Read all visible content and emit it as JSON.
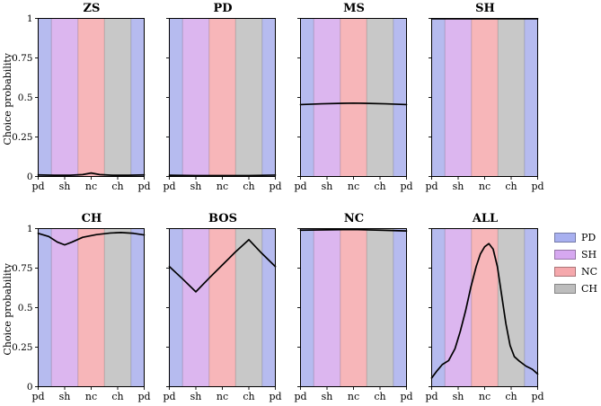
{
  "chart_data": {
    "type": "line",
    "ylabel": "Choice probability",
    "x_tick_labels": [
      "pd",
      "sh",
      "nc",
      "ch",
      "pd"
    ],
    "y_ticks": [
      0,
      0.25,
      0.5,
      0.75,
      1
    ],
    "y_tick_labels": [
      "0",
      "0.25",
      "0.5",
      "0.75",
      "1"
    ],
    "ylim": [
      0,
      1
    ],
    "grid": false,
    "line_color": "#000000",
    "band_order": [
      "PD",
      "SH",
      "NC",
      "CH",
      "PD"
    ],
    "band_edges": [
      0,
      0.125,
      0.375,
      0.625,
      0.875,
      1
    ],
    "band_colors": {
      "PD": "#b6bbef",
      "SH": "#dcb6ef",
      "NC": "#f7b6b9",
      "CH": "#c8c8c8"
    },
    "legend": {
      "position": "right",
      "entries": [
        {
          "label": "PD",
          "color": "#a8b0f0"
        },
        {
          "label": "SH",
          "color": "#d6a8f0"
        },
        {
          "label": "NC",
          "color": "#f5a8ac"
        },
        {
          "label": "CH",
          "color": "#bdbdbd"
        }
      ]
    },
    "panels": [
      {
        "title": "ZS",
        "row": 0,
        "points": [
          [
            0,
            0.01
          ],
          [
            0.15,
            0.008
          ],
          [
            0.3,
            0.008
          ],
          [
            0.42,
            0.012
          ],
          [
            0.5,
            0.022
          ],
          [
            0.58,
            0.012
          ],
          [
            0.7,
            0.008
          ],
          [
            0.85,
            0.008
          ],
          [
            1,
            0.01
          ]
        ]
      },
      {
        "title": "PD",
        "row": 0,
        "points": [
          [
            0,
            0.008
          ],
          [
            0.25,
            0.006
          ],
          [
            0.5,
            0.006
          ],
          [
            0.75,
            0.006
          ],
          [
            1,
            0.009
          ]
        ]
      },
      {
        "title": "MS",
        "row": 0,
        "points": [
          [
            0,
            0.455
          ],
          [
            0.2,
            0.46
          ],
          [
            0.4,
            0.463
          ],
          [
            0.5,
            0.464
          ],
          [
            0.6,
            0.463
          ],
          [
            0.8,
            0.46
          ],
          [
            1,
            0.455
          ]
        ]
      },
      {
        "title": "SH",
        "row": 0,
        "points": [
          [
            0,
            0.998
          ],
          [
            1,
            0.998
          ]
        ]
      },
      {
        "title": "CH",
        "row": 1,
        "points": [
          [
            0,
            0.97
          ],
          [
            0.1,
            0.95
          ],
          [
            0.18,
            0.915
          ],
          [
            0.25,
            0.897
          ],
          [
            0.32,
            0.915
          ],
          [
            0.42,
            0.945
          ],
          [
            0.55,
            0.962
          ],
          [
            0.68,
            0.972
          ],
          [
            0.78,
            0.975
          ],
          [
            0.9,
            0.97
          ],
          [
            1,
            0.96
          ]
        ]
      },
      {
        "title": "BOS",
        "row": 1,
        "points": [
          [
            0,
            0.76
          ],
          [
            0.12,
            0.685
          ],
          [
            0.25,
            0.6
          ],
          [
            0.38,
            0.69
          ],
          [
            0.5,
            0.77
          ],
          [
            0.62,
            0.85
          ],
          [
            0.75,
            0.93
          ],
          [
            0.87,
            0.845
          ],
          [
            1,
            0.76
          ]
        ]
      },
      {
        "title": "NC",
        "row": 1,
        "points": [
          [
            0,
            0.99
          ],
          [
            0.25,
            0.992
          ],
          [
            0.5,
            0.994
          ],
          [
            0.75,
            0.99
          ],
          [
            1,
            0.985
          ]
        ]
      },
      {
        "title": "ALL",
        "row": 1,
        "points": [
          [
            0,
            0.055
          ],
          [
            0.05,
            0.1
          ],
          [
            0.1,
            0.14
          ],
          [
            0.16,
            0.165
          ],
          [
            0.22,
            0.24
          ],
          [
            0.27,
            0.35
          ],
          [
            0.32,
            0.48
          ],
          [
            0.37,
            0.63
          ],
          [
            0.42,
            0.76
          ],
          [
            0.46,
            0.84
          ],
          [
            0.5,
            0.885
          ],
          [
            0.54,
            0.905
          ],
          [
            0.58,
            0.87
          ],
          [
            0.62,
            0.76
          ],
          [
            0.66,
            0.58
          ],
          [
            0.7,
            0.4
          ],
          [
            0.74,
            0.26
          ],
          [
            0.78,
            0.19
          ],
          [
            0.83,
            0.16
          ],
          [
            0.89,
            0.13
          ],
          [
            0.95,
            0.11
          ],
          [
            1,
            0.08
          ]
        ]
      }
    ]
  }
}
